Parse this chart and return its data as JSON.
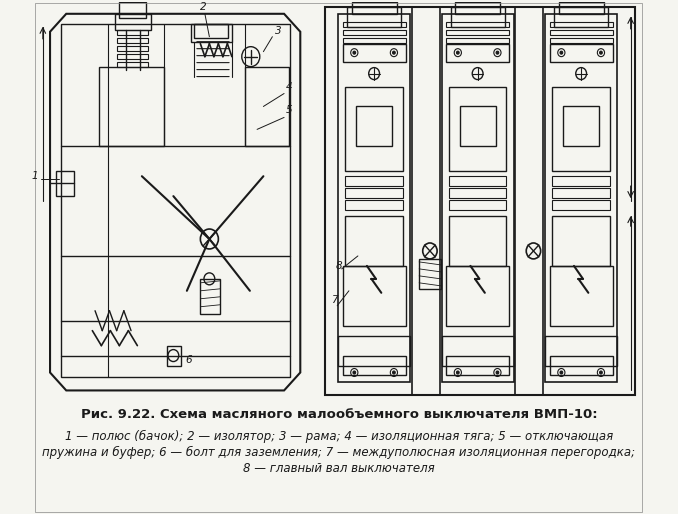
{
  "title": "Рис. 9.22. Схема масляного малообъемного выключателя ВМП-10:",
  "caption_line1": "1 — полюс (бачок); 2 — изолятор; 3 — рама; 4 — изоляционная тяга; 5 — отключающая",
  "caption_line2": "пружина и буфер; 6 — болт для заземления; 7 — междуполюсная изоляционная перегородка;",
  "caption_line3": "8 — главный вал выключателя",
  "bg_color": "#f5f5f0",
  "line_color": "#1a1a1a",
  "title_fontsize": 9.5,
  "caption_fontsize": 8.5
}
